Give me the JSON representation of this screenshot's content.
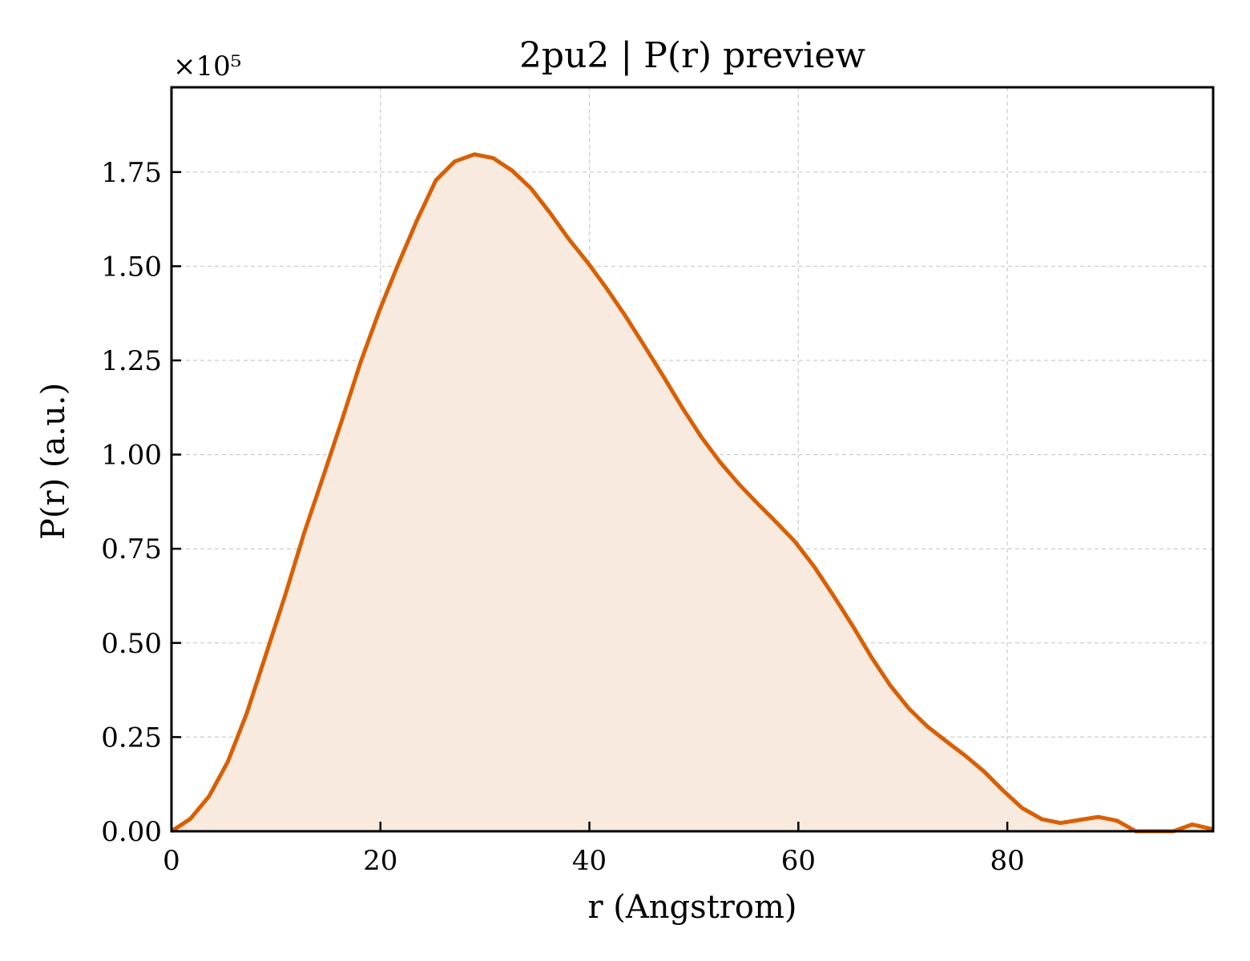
{
  "chart_data": {
    "type": "area",
    "title": "2pu2 | P(r) preview",
    "xlabel": "r (Angstrom)",
    "ylabel": "P(r) (a.u.)",
    "y_offset_label": "×10⁵",
    "y_scale": 100000,
    "xlim": [
      0,
      99.7
    ],
    "ylim": [
      0,
      1.975
    ],
    "x_ticks": [
      0,
      20,
      40,
      60,
      80
    ],
    "x_tick_labels": [
      "0",
      "20",
      "40",
      "60",
      "80"
    ],
    "y_ticks": [
      0,
      0.25,
      0.5,
      0.75,
      1.0,
      1.25,
      1.5,
      1.75
    ],
    "y_tick_labels": [
      "0.00",
      "0.25",
      "0.50",
      "0.75",
      "1.00",
      "1.25",
      "1.50",
      "1.75"
    ],
    "grid": true,
    "line_color": "#d95f02",
    "fill_color": "#f9eadf",
    "series": [
      {
        "x": [
          0,
          1.8,
          3.6,
          5.4,
          7.2,
          9.0,
          10.9,
          12.7,
          14.5,
          16.3,
          18.1,
          19.9,
          21.7,
          23.5,
          25.3,
          27.1,
          29.0,
          30.8,
          32.6,
          34.4,
          36.2,
          38.0,
          39.8,
          41.6,
          43.4,
          45.2,
          47.1,
          48.9,
          50.7,
          52.5,
          54.3,
          56.1,
          57.9,
          59.7,
          61.5,
          63.3,
          65.2,
          67.0,
          68.8,
          70.6,
          72.4,
          74.2,
          76.0,
          77.8,
          79.6,
          81.4,
          83.3,
          85.1,
          86.9,
          88.7,
          90.5,
          92.3,
          94.1,
          95.9,
          97.7,
          99.7
        ],
        "values": [
          0.0,
          0.033,
          0.093,
          0.185,
          0.313,
          0.466,
          0.628,
          0.792,
          0.94,
          1.09,
          1.245,
          1.382,
          1.505,
          1.622,
          1.728,
          1.778,
          1.797,
          1.787,
          1.754,
          1.707,
          1.643,
          1.573,
          1.511,
          1.443,
          1.37,
          1.291,
          1.207,
          1.124,
          1.047,
          0.98,
          0.922,
          0.87,
          0.82,
          0.768,
          0.703,
          0.628,
          0.545,
          0.462,
          0.387,
          0.325,
          0.277,
          0.238,
          0.2,
          0.158,
          0.108,
          0.062,
          0.032,
          0.022,
          0.03,
          0.038,
          0.028,
          0.0,
          0.0,
          0.0,
          0.018,
          0.005
        ]
      }
    ]
  }
}
